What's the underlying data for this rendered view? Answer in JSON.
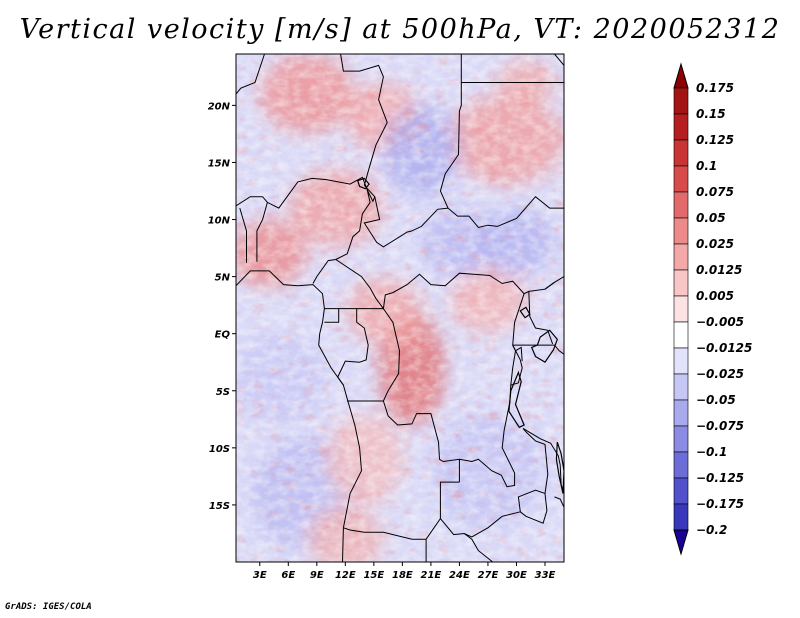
{
  "title": "Vertical velocity [m/s] at 500hPa, VT: 2020052312",
  "footer": "GrADS: IGES/COLA",
  "map": {
    "lat_range": [
      -20,
      24.5
    ],
    "lon_range": [
      0.5,
      35
    ],
    "lat_ticks": [
      {
        "value": 20,
        "label": "20N"
      },
      {
        "value": 15,
        "label": "15N"
      },
      {
        "value": 10,
        "label": "10N"
      },
      {
        "value": 5,
        "label": "5N"
      },
      {
        "value": 0,
        "label": "EQ"
      },
      {
        "value": -5,
        "label": "5S"
      },
      {
        "value": -10,
        "label": "10S"
      },
      {
        "value": -15,
        "label": "15S"
      }
    ],
    "lon_ticks": [
      {
        "value": 3,
        "label": "3E"
      },
      {
        "value": 6,
        "label": "6E"
      },
      {
        "value": 9,
        "label": "9E"
      },
      {
        "value": 12,
        "label": "12E"
      },
      {
        "value": 15,
        "label": "15E"
      },
      {
        "value": 18,
        "label": "18E"
      },
      {
        "value": 21,
        "label": "21E"
      },
      {
        "value": 24,
        "label": "24E"
      },
      {
        "value": 27,
        "label": "27E"
      },
      {
        "value": 30,
        "label": "30E"
      },
      {
        "value": 33,
        "label": "33E"
      }
    ]
  },
  "colorbar": {
    "levels": [
      {
        "label": "0.175",
        "color": "#a31515"
      },
      {
        "label": "0.15",
        "color": "#b51f1f"
      },
      {
        "label": "0.125",
        "color": "#c93434"
      },
      {
        "label": "0.1",
        "color": "#d84b4b"
      },
      {
        "label": "0.075",
        "color": "#e26a6a"
      },
      {
        "label": "0.05",
        "color": "#ed8a8a"
      },
      {
        "label": "0.025",
        "color": "#f4a9a9"
      },
      {
        "label": "0.0125",
        "color": "#f8c6c6"
      },
      {
        "label": "0.005",
        "color": "#fce2e2"
      },
      {
        "label": "−0.005",
        "color": "#ffffff"
      },
      {
        "label": "−0.0125",
        "color": "#e2e2fb"
      },
      {
        "label": "−0.025",
        "color": "#c7c7f6"
      },
      {
        "label": "−0.05",
        "color": "#a9a9ee"
      },
      {
        "label": "−0.075",
        "color": "#8b8be4"
      },
      {
        "label": "−0.1",
        "color": "#6d6dd8"
      },
      {
        "label": "−0.125",
        "color": "#5151cc"
      },
      {
        "label": "−0.175",
        "color": "#3838bd"
      },
      {
        "label": "−0.2",
        "color": "#2020ac"
      }
    ],
    "top_arrow_color": "#8b0000",
    "bottom_arrow_color": "#1a0096"
  },
  "field_regions": [
    {
      "name": "sahel-ascent",
      "sign": "up",
      "intensity": 0.7
    },
    {
      "name": "congo-basin-ascent",
      "sign": "up",
      "intensity": 0.9
    },
    {
      "name": "chad-basin-descent",
      "sign": "down",
      "intensity": 0.6
    },
    {
      "name": "south-atlantic-descent",
      "sign": "down",
      "intensity": 0.5
    },
    {
      "name": "angola-mixed",
      "sign": "up",
      "intensity": 0.4
    }
  ]
}
